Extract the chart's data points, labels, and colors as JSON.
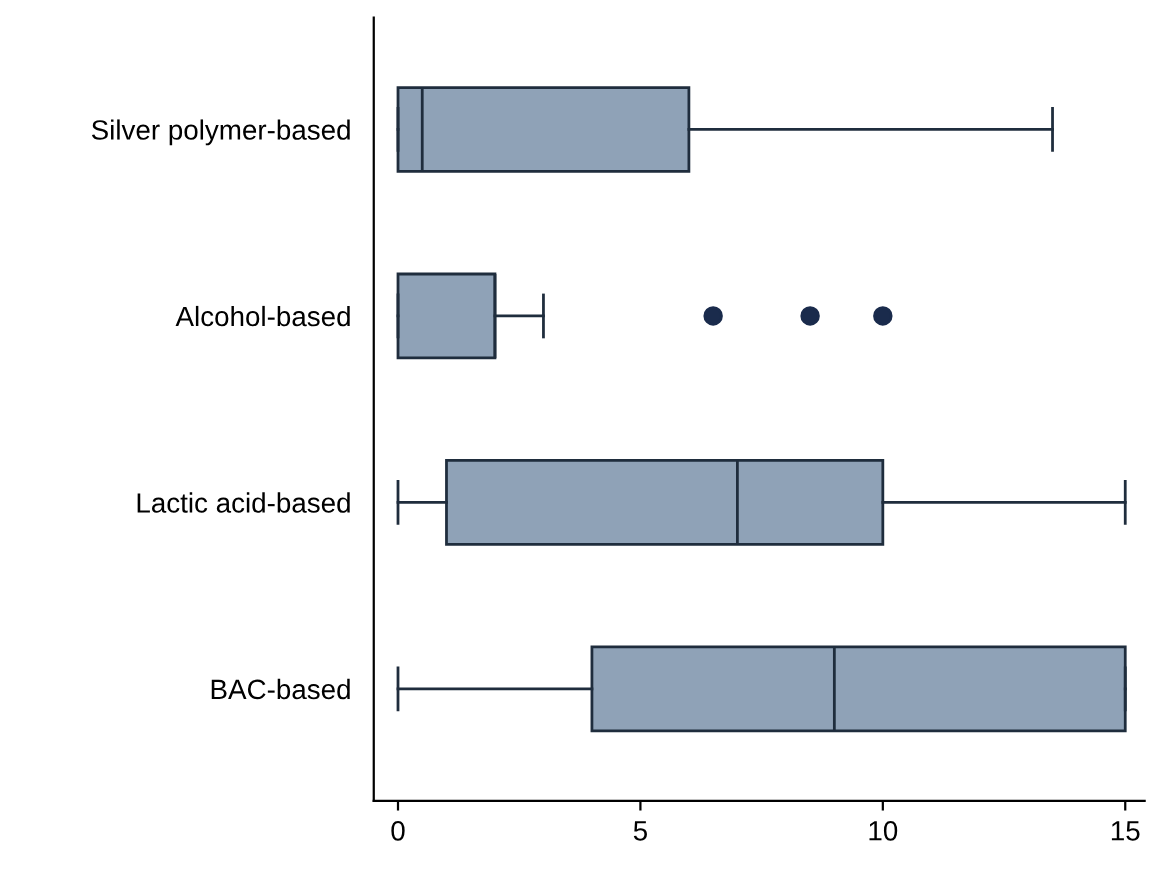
{
  "chart_data": {
    "type": "box",
    "orientation": "horizontal",
    "categories": [
      "Silver polymer-based",
      "Alcohol-based",
      "Lactic acid-based",
      "BAC-based"
    ],
    "boxes": [
      {
        "low": 0,
        "q1": 0,
        "median": 0.5,
        "q3": 6,
        "high": 13.5
      },
      {
        "low": 0,
        "q1": 0,
        "median": 2,
        "q3": 2,
        "high": 3,
        "outliers": [
          6.5,
          8.5,
          10
        ]
      },
      {
        "low": 0,
        "q1": 1,
        "median": 7,
        "q3": 10,
        "high": 15
      },
      {
        "low": 0,
        "q1": 4,
        "median": 9,
        "q3": 15,
        "high": 15
      }
    ],
    "color": "#8fa2b7",
    "xlim": [
      -0.5,
      15.4
    ],
    "xticks": [
      0,
      5,
      10,
      15
    ],
    "grid": false
  }
}
